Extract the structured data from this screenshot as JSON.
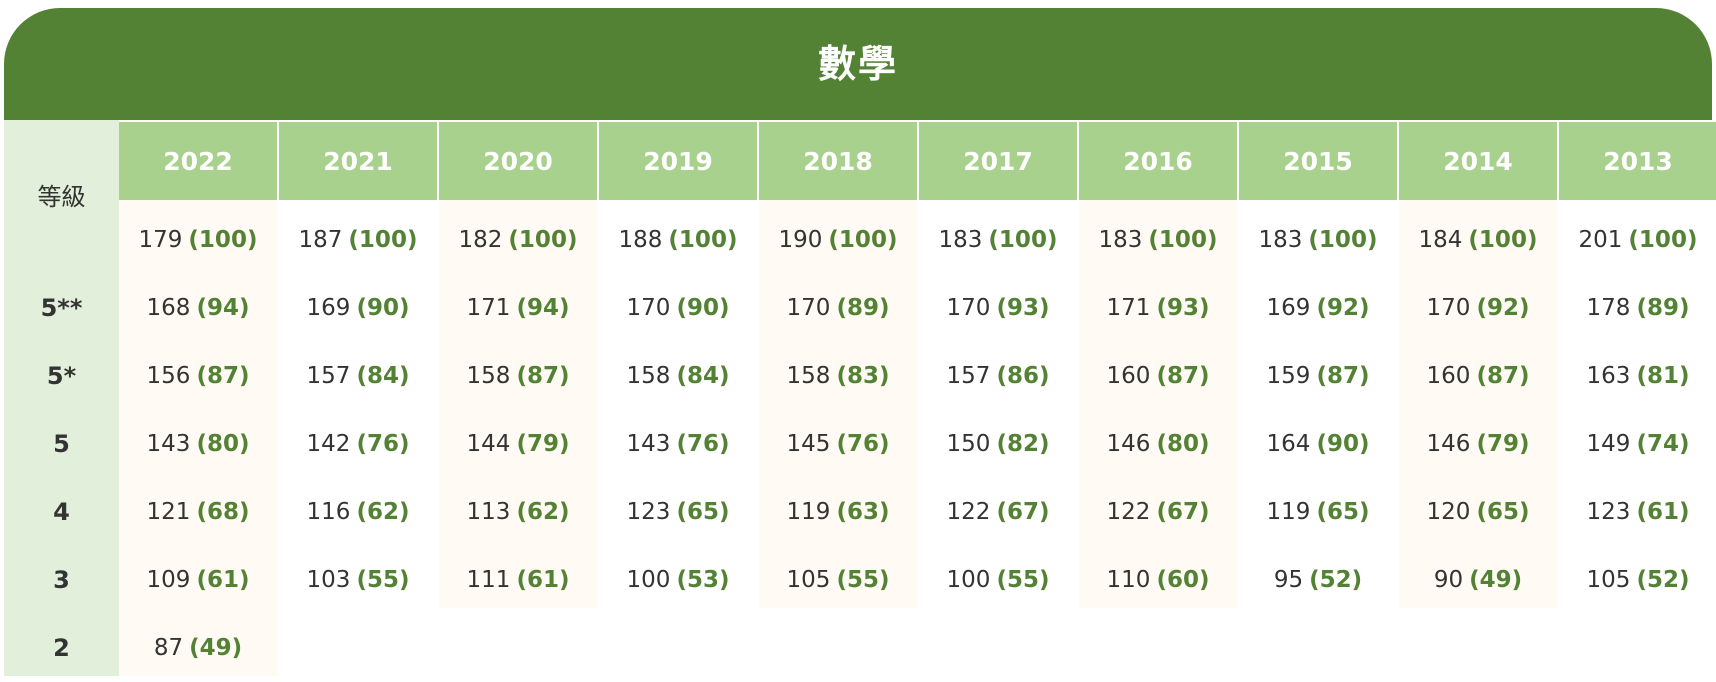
{
  "title": "數學",
  "grade_header": "等級",
  "grades": [
    "",
    "5**",
    "5*",
    "5",
    "4",
    "3",
    "2"
  ],
  "colors": {
    "header_bg": "#548235",
    "year_header_bg": "#a9d18e",
    "grade_col_bg": "#e2efda",
    "cell_bg_a": "#fffaf3",
    "cell_bg_b": "#ffffff",
    "percent_text": "#548235"
  },
  "years": [
    {
      "year": "2022",
      "cells": [
        {
          "score": "179",
          "pct": "(100)"
        },
        {
          "score": "168",
          "pct": "(94)"
        },
        {
          "score": "156",
          "pct": "(87)"
        },
        {
          "score": "143",
          "pct": "(80)"
        },
        {
          "score": "121",
          "pct": "(68)"
        },
        {
          "score": "109",
          "pct": "(61)"
        },
        {
          "score": "87",
          "pct": "(49)"
        }
      ]
    },
    {
      "year": "2021",
      "cells": [
        {
          "score": "187",
          "pct": "(100)"
        },
        {
          "score": "169",
          "pct": "(90)"
        },
        {
          "score": "157",
          "pct": "(84)"
        },
        {
          "score": "142",
          "pct": "(76)"
        },
        {
          "score": "116",
          "pct": "(62)"
        },
        {
          "score": "103",
          "pct": "(55)"
        }
      ]
    },
    {
      "year": "2020",
      "cells": [
        {
          "score": "182",
          "pct": "(100)"
        },
        {
          "score": "171",
          "pct": "(94)"
        },
        {
          "score": "158",
          "pct": "(87)"
        },
        {
          "score": "144",
          "pct": "(79)"
        },
        {
          "score": "113",
          "pct": "(62)"
        },
        {
          "score": "111",
          "pct": "(61)"
        }
      ]
    },
    {
      "year": "2019",
      "cells": [
        {
          "score": "188",
          "pct": "(100)"
        },
        {
          "score": "170",
          "pct": "(90)"
        },
        {
          "score": "158",
          "pct": "(84)"
        },
        {
          "score": "143",
          "pct": "(76)"
        },
        {
          "score": "123",
          "pct": "(65)"
        },
        {
          "score": "100",
          "pct": "(53)"
        }
      ]
    },
    {
      "year": "2018",
      "cells": [
        {
          "score": "190",
          "pct": "(100)"
        },
        {
          "score": "170",
          "pct": "(89)"
        },
        {
          "score": "158",
          "pct": "(83)"
        },
        {
          "score": "145",
          "pct": "(76)"
        },
        {
          "score": "119",
          "pct": "(63)"
        },
        {
          "score": "105",
          "pct": "(55)"
        }
      ]
    },
    {
      "year": "2017",
      "cells": [
        {
          "score": "183",
          "pct": "(100)"
        },
        {
          "score": "170",
          "pct": "(93)"
        },
        {
          "score": "157",
          "pct": "(86)"
        },
        {
          "score": "150",
          "pct": "(82)"
        },
        {
          "score": "122",
          "pct": "(67)"
        },
        {
          "score": "100",
          "pct": "(55)"
        }
      ]
    },
    {
      "year": "2016",
      "cells": [
        {
          "score": "183",
          "pct": "(100)"
        },
        {
          "score": "171",
          "pct": "(93)"
        },
        {
          "score": "160",
          "pct": "(87)"
        },
        {
          "score": "146",
          "pct": "(80)"
        },
        {
          "score": "122",
          "pct": "(67)"
        },
        {
          "score": "110",
          "pct": "(60)"
        }
      ]
    },
    {
      "year": "2015",
      "cells": [
        {
          "score": "183",
          "pct": "(100)"
        },
        {
          "score": "169",
          "pct": "(92)"
        },
        {
          "score": "159",
          "pct": "(87)"
        },
        {
          "score": "164",
          "pct": "(90)"
        },
        {
          "score": "119",
          "pct": "(65)"
        },
        {
          "score": "95",
          "pct": "(52)"
        }
      ]
    },
    {
      "year": "2014",
      "cells": [
        {
          "score": "184",
          "pct": "(100)"
        },
        {
          "score": "170",
          "pct": "(92)"
        },
        {
          "score": "160",
          "pct": "(87)"
        },
        {
          "score": "146",
          "pct": "(79)"
        },
        {
          "score": "120",
          "pct": "(65)"
        },
        {
          "score": "90",
          "pct": "(49)"
        }
      ]
    },
    {
      "year": "2013",
      "cells": [
        {
          "score": "201",
          "pct": "(100)"
        },
        {
          "score": "178",
          "pct": "(89)"
        },
        {
          "score": "163",
          "pct": "(81)"
        },
        {
          "score": "149",
          "pct": "(74)"
        },
        {
          "score": "123",
          "pct": "(61)"
        },
        {
          "score": "105",
          "pct": "(52)"
        }
      ]
    }
  ]
}
